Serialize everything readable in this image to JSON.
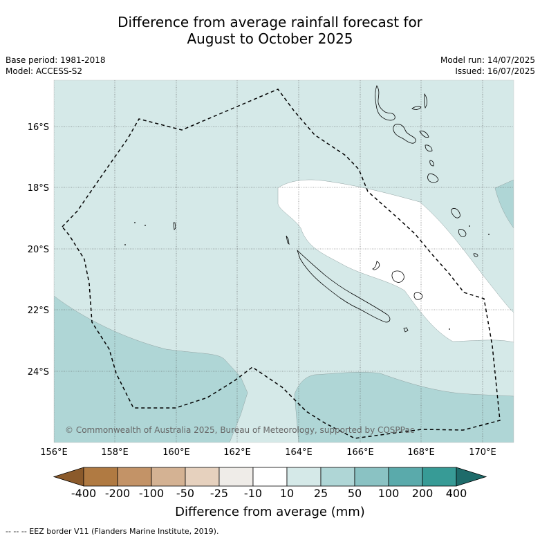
{
  "title_line1": "Difference from average rainfall forecast for",
  "title_line2": "August to October 2025",
  "meta_left": {
    "base_period": "Base period: 1981-2018",
    "model": "Model: ACCESS-S2"
  },
  "meta_right": {
    "model_run": "Model run: 14/07/2025",
    "issued": "Issued: 16/07/2025"
  },
  "copyright": "© Commonwealth of Australia 2025, Bureau of Meteorology, supported by COSPPac",
  "x_ticks": [
    "156°E",
    "158°E",
    "160°E",
    "162°E",
    "164°E",
    "166°E",
    "168°E",
    "170°E"
  ],
  "y_ticks": [
    "16°S",
    "18°S",
    "20°S",
    "22°S",
    "24°S"
  ],
  "colorbar": {
    "title": "Difference from average (mm)",
    "labels": [
      "-400",
      "-200",
      "-100",
      "-50",
      "-25",
      "-10",
      "10",
      "25",
      "50",
      "100",
      "200",
      "400"
    ],
    "colors": [
      "#8b5a2b",
      "#b07a42",
      "#c39367",
      "#d4b293",
      "#e6d1be",
      "#efece8",
      "#ffffff",
      "#d5e9e8",
      "#afd6d6",
      "#8ac2c3",
      "#5aaaab",
      "#379b96",
      "#1e6b6a"
    ]
  },
  "footnote": "--  --  -- EEZ border V11 (Flanders Marine Institute, 2019)."
}
